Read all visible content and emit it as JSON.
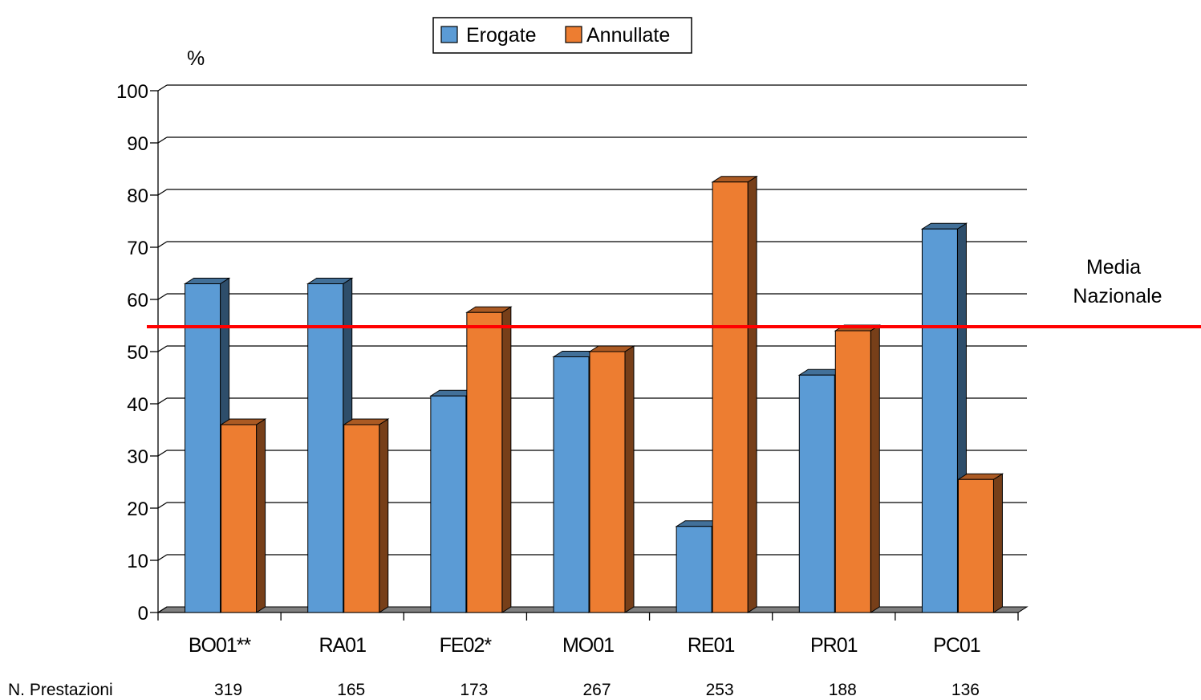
{
  "chart_data": {
    "type": "bar",
    "title": "",
    "ylabel": "%",
    "xlabel": "",
    "ylim": [
      0,
      100
    ],
    "yticks": [
      0,
      10,
      20,
      30,
      40,
      50,
      60,
      70,
      80,
      90,
      100
    ],
    "categories": [
      "BO01**",
      "RA01",
      "FE02*",
      "MO01",
      "RE01",
      "PR01",
      "PC01"
    ],
    "series": [
      {
        "name": "Erogate",
        "values": [
          63,
          63,
          41.5,
          49,
          16.5,
          45.5,
          73.5
        ],
        "color": "#5B9BD5"
      },
      {
        "name": "Annullate",
        "values": [
          36,
          36,
          57.5,
          50,
          82.5,
          54,
          25.5
        ],
        "color": "#ED7D31"
      }
    ],
    "reference_line": {
      "label_line1": "Media",
      "label_line2": "Nazionale",
      "value": 54,
      "color": "#FF0000"
    },
    "row_label": "N. Prestazioni",
    "counts": [
      "319",
      "165",
      "173",
      "267",
      "253",
      "188",
      "136"
    ],
    "legend_position": "top-center",
    "grid": true,
    "style": "3d"
  }
}
